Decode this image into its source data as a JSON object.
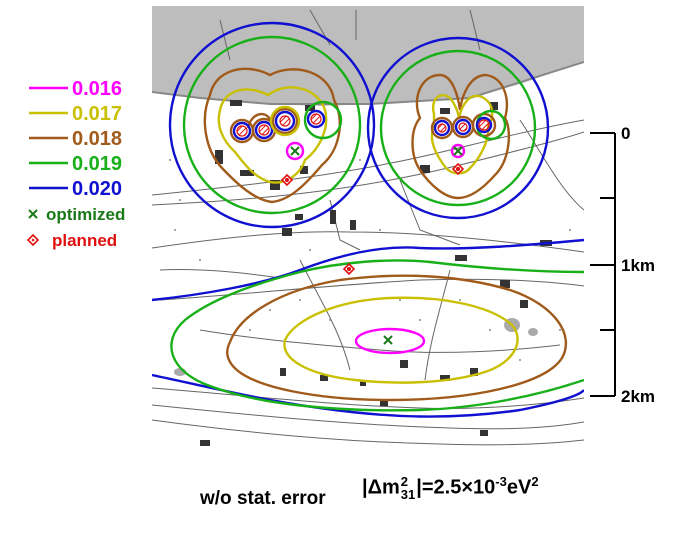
{
  "legend": {
    "items": [
      {
        "label": "0.016",
        "color": "#ff00ff"
      },
      {
        "label": "0.017",
        "color": "#c8c000"
      },
      {
        "label": "0.018",
        "color": "#a05a1a"
      },
      {
        "label": "0.019",
        "color": "#18b018"
      },
      {
        "label": "0.020",
        "color": "#1010d0"
      }
    ],
    "optimized_label": "optimized",
    "optimized_color": "#1a7a1a",
    "planned_label": "planned",
    "planned_color": "#e01010"
  },
  "scale": {
    "ticks": [
      "0",
      "1km",
      "2km"
    ]
  },
  "caption": {
    "left": "w/o stat. error",
    "abs_open": "|",
    "delta": "Δm",
    "sup_2": "2",
    "sub_31": "31",
    "abs_close": "|",
    "equals": "=2.5×10",
    "exp": "-3",
    "unit": "eV",
    "unit_exp": "2"
  }
}
